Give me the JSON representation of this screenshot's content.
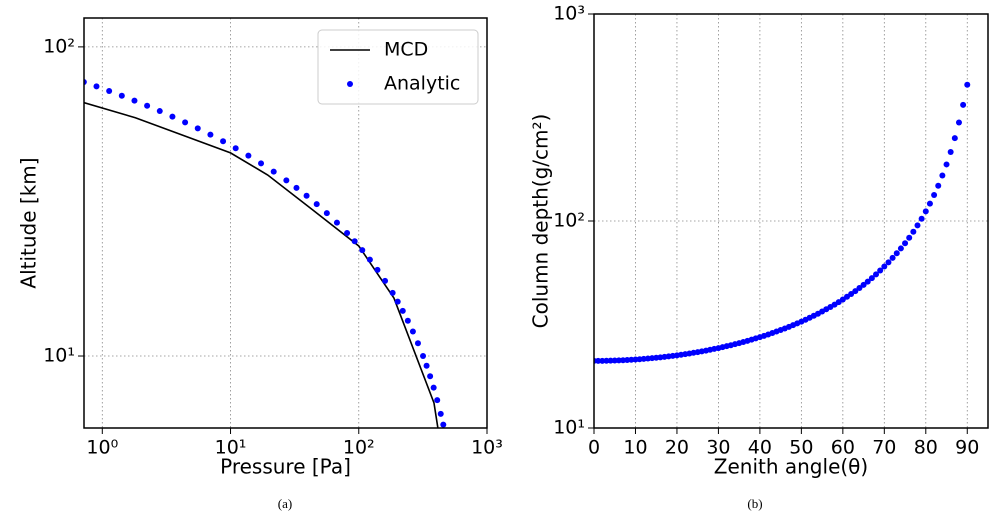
{
  "chart_data": [
    {
      "type": "line",
      "caption": "(a)",
      "x_label": "Pressure [Pa]",
      "y_label": "Altitude [km]",
      "xscale": "log",
      "yscale": "log",
      "grid": true,
      "legend": "upper right",
      "xlim": [
        0.72,
        1000
      ],
      "ylim": [
        5.85,
        124
      ],
      "xticks": [
        {
          "value": 1,
          "label": "10⁰"
        },
        {
          "value": 10,
          "label": "10¹"
        },
        {
          "value": 100,
          "label": "10²"
        },
        {
          "value": 1000,
          "label": "10³"
        }
      ],
      "yticks": [
        {
          "value": 10,
          "label": "10¹"
        },
        {
          "value": 100,
          "label": "10²"
        }
      ],
      "series": [
        {
          "name": "MCD",
          "type": "line",
          "color": "#000000",
          "x": [
            0.72,
            1.81,
            10,
            19.5,
            43.7,
            100,
            188,
            386,
            414
          ],
          "values": [
            66,
            59,
            45.4,
            38.5,
            29.7,
            22.7,
            15.4,
            7.05,
            5.85
          ]
        },
        {
          "name": "Analytic",
          "type": "scatter",
          "color": "#0000ff",
          "x": [
            0.718,
            0.901,
            1.131,
            1.42,
            1.782,
            2.236,
            2.807,
            3.523,
            4.423,
            5.551,
            6.969,
            8.745,
            10.97,
            13.78,
            17.29,
            21.71,
            27.25,
            32.68,
            39.18,
            46.99,
            56.37,
            67.58,
            81.06,
            92.94,
            106.5,
            122.1,
            139.9,
            160.3,
            183.7,
            201.2,
            220.4,
            241.4,
            264.4,
            289.5,
            317.1,
            338.0,
            360.1,
            383.7,
            409.0,
            435.8,
            456.2
          ],
          "values": [
            77,
            74.5,
            72,
            69.5,
            67,
            64.5,
            62,
            59.5,
            57,
            54.5,
            52,
            49.5,
            47,
            44.5,
            42,
            39.5,
            37,
            35,
            33,
            31,
            29,
            27,
            25,
            23.5,
            22,
            20.5,
            19,
            17.5,
            16,
            15,
            14,
            13,
            12,
            11,
            10,
            9.3,
            8.6,
            7.9,
            7.2,
            6.5,
            6
          ]
        }
      ]
    },
    {
      "type": "scatter",
      "caption": "(b)",
      "x_label": "Zenith angle(θ)",
      "y_label": "Column depth(g/cm²)",
      "yscale": "log",
      "grid": true,
      "color": "#0000ff",
      "xlim": [
        0,
        95
      ],
      "ylim": [
        10,
        1000
      ],
      "xticks": [
        0,
        10,
        20,
        30,
        40,
        50,
        60,
        70,
        80,
        90
      ],
      "yticks": [
        {
          "value": 10,
          "label": "10¹"
        },
        {
          "value": 100,
          "label": "10²"
        },
        {
          "value": 1000,
          "label": "10³"
        }
      ],
      "x": [
        0,
        1,
        2,
        3,
        4,
        5,
        6,
        7,
        8,
        9,
        10,
        11,
        12,
        13,
        14,
        15,
        16,
        17,
        18,
        19,
        20,
        21,
        22,
        23,
        24,
        25,
        26,
        27,
        28,
        29,
        30,
        31,
        32,
        33,
        34,
        35,
        36,
        37,
        38,
        39,
        40,
        41,
        42,
        43,
        44,
        45,
        46,
        47,
        48,
        49,
        50,
        51,
        52,
        53,
        54,
        55,
        56,
        57,
        58,
        59,
        60,
        61,
        62,
        63,
        64,
        65,
        66,
        67,
        68,
        69,
        70,
        71,
        72,
        73,
        74,
        75,
        76,
        77,
        78,
        79,
        80,
        81,
        82,
        83,
        84,
        85,
        86,
        87,
        88,
        89,
        90
      ],
      "values": [
        21.1,
        21.1,
        21.11,
        21.13,
        21.15,
        21.18,
        21.21,
        21.26,
        21.3,
        21.36,
        21.42,
        21.49,
        21.57,
        21.65,
        21.74,
        21.84,
        21.94,
        22.06,
        22.18,
        22.31,
        22.44,
        22.59,
        22.74,
        22.91,
        23.08,
        23.26,
        23.46,
        23.66,
        23.87,
        24.1,
        24.33,
        24.58,
        24.85,
        25.12,
        25.41,
        25.71,
        26.03,
        26.37,
        26.72,
        27.09,
        27.48,
        27.88,
        28.31,
        28.76,
        29.24,
        29.74,
        30.26,
        30.81,
        31.4,
        32.01,
        32.66,
        33.35,
        34.08,
        34.85,
        35.66,
        36.53,
        37.45,
        38.42,
        39.47,
        40.58,
        41.76,
        43.04,
        44.4,
        45.86,
        47.44,
        49.14,
        50.98,
        52.97,
        55.24,
        57.63,
        60.26,
        63.14,
        66.33,
        69.87,
        73.7,
        78.1,
        83.0,
        88.7,
        95.2,
        102.6,
        111.3,
        121.4,
        133.5,
        148.0,
        165.9,
        187.6,
        215.4,
        251.3,
        299.0,
        363.9,
        455
      ]
    }
  ]
}
